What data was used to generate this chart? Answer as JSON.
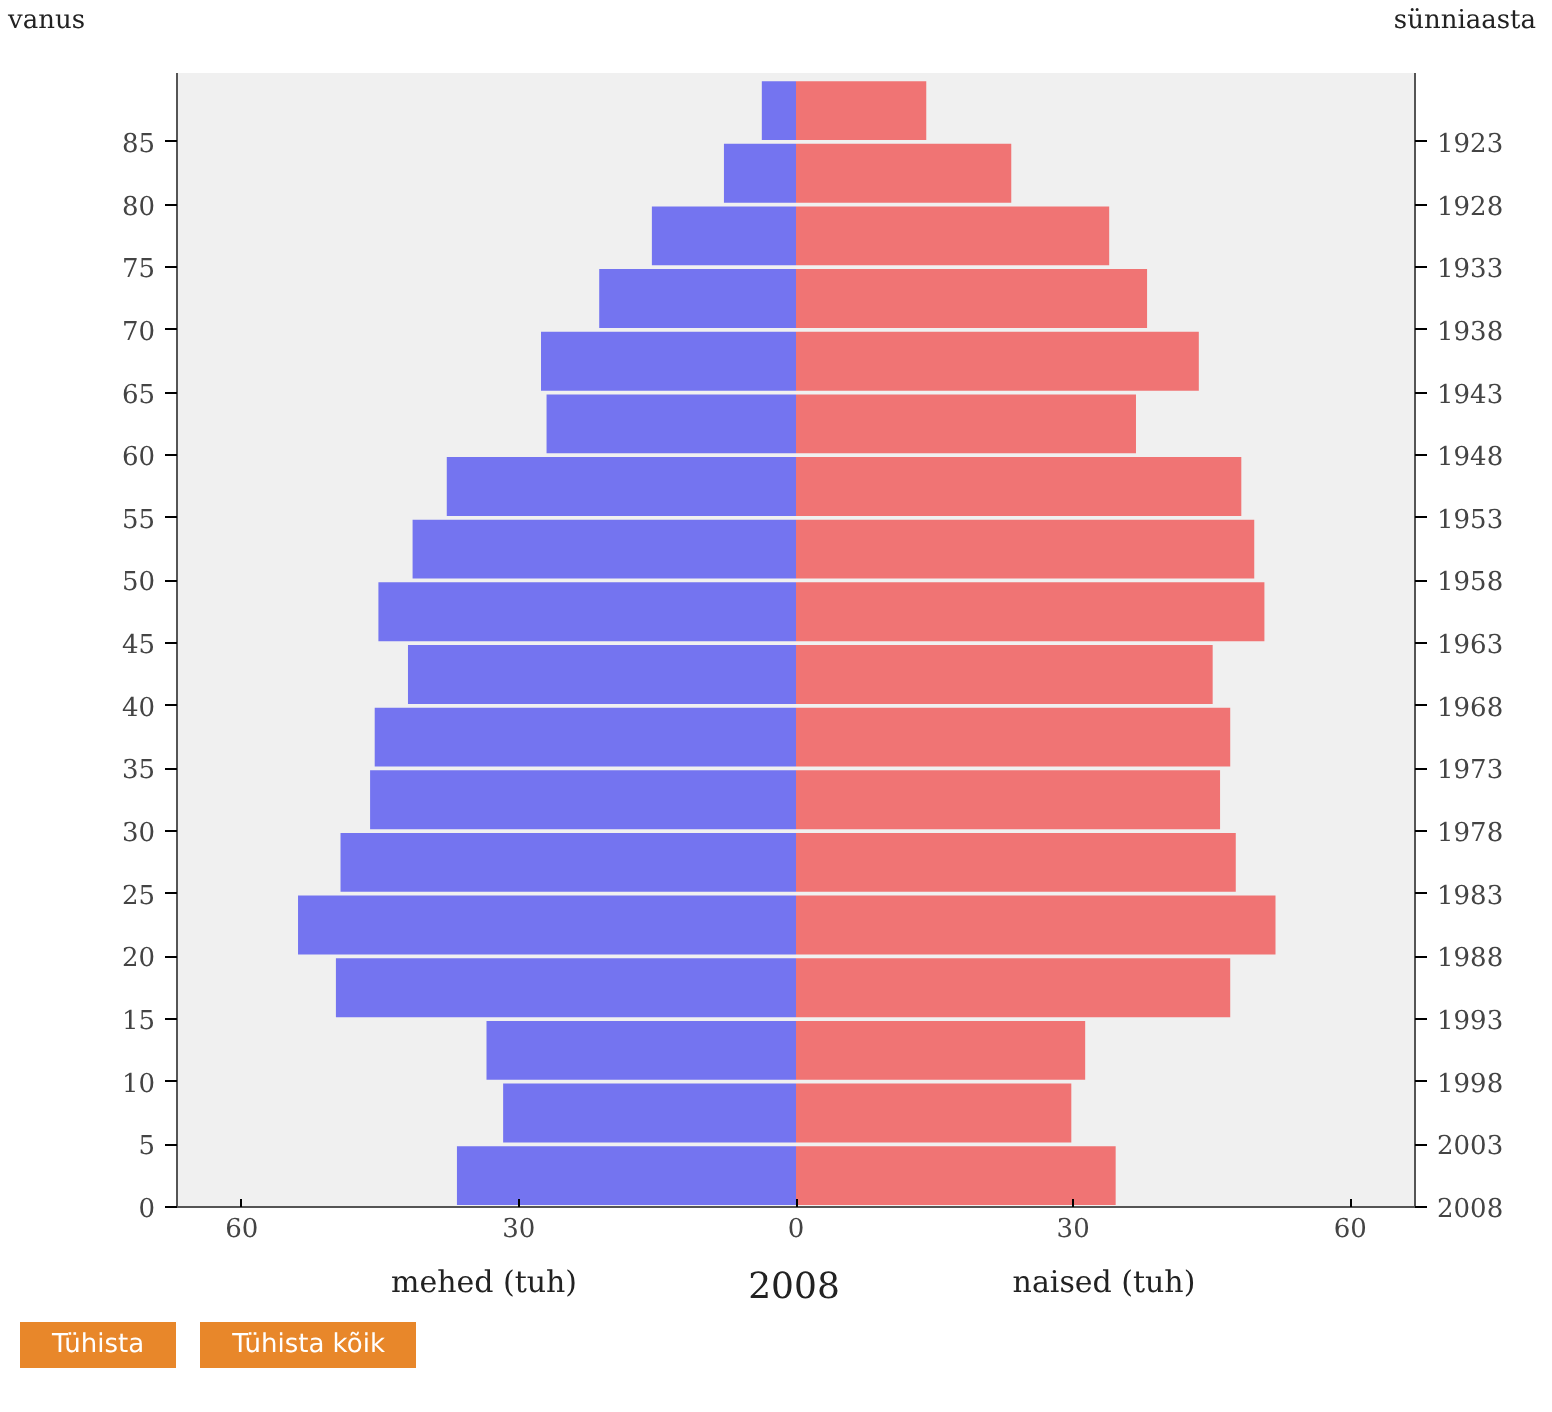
{
  "chart_data": {
    "type": "bar",
    "orientation": "horizontal",
    "xlabel": "2008",
    "ylabel": "vanus",
    "y2label": "sünniaasta",
    "x": [
      2.5,
      7.5,
      12.5,
      17.5,
      22.5,
      27.5,
      32.5,
      37.5,
      42.5,
      47.5,
      52.5,
      57.5,
      62.5,
      67.5,
      72.5,
      77.5,
      82.5,
      87.5
    ],
    "series": [
      {
        "color": "#7474f0",
        "values": [
          -36.7,
          -31.7,
          -33.5,
          -49.8,
          -53.9,
          -49.3,
          -46.1,
          -45.6,
          -42.0,
          -45.2,
          -41.5,
          -37.8,
          -27.0,
          -27.6,
          -21.3,
          -15.6,
          -7.8,
          -3.7
        ]
      },
      {
        "color": "#f07474",
        "values": [
          34.6,
          29.8,
          31.3,
          47.0,
          51.9,
          47.6,
          45.9,
          47.0,
          45.1,
          50.7,
          49.6,
          48.2,
          36.8,
          43.6,
          38.0,
          33.9,
          23.3,
          14.1
        ]
      }
    ],
    "xlim": [
      -67,
      67
    ],
    "xticks": [
      {
        "value": -60,
        "label": "60"
      },
      {
        "value": -30,
        "label": "30"
      },
      0,
      30,
      60
    ],
    "ylim": [
      0,
      90.5
    ],
    "yticks": [
      0,
      5,
      10,
      15,
      20,
      25,
      30,
      35,
      40,
      45,
      50,
      55,
      60,
      65,
      70,
      75,
      80,
      85
    ],
    "y2lim": [
      2008,
      1917.5
    ],
    "y2ticks": [
      2008,
      2003,
      1998,
      1993,
      1988,
      1983,
      1978,
      1973,
      1968,
      1963,
      1958,
      1953,
      1948,
      1943,
      1938,
      1933,
      1928,
      1923
    ],
    "annotations": [
      "mehed (tuh)",
      "naised (tuh)",
      "Tühista",
      "Tühista kõik"
    ],
    "stacked": true,
    "grid": false
  }
}
